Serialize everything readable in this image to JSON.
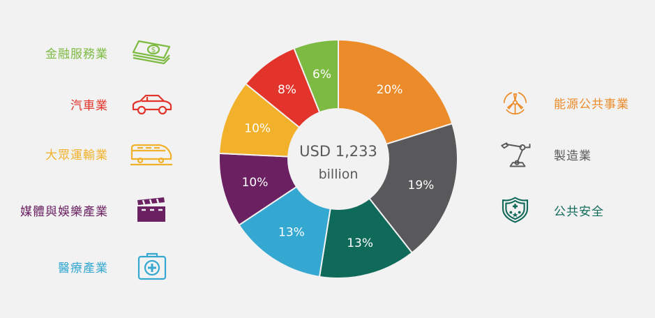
{
  "chart_data": {
    "type": "pie",
    "variant": "donut",
    "center_text": [
      "USD 1,233",
      "billion"
    ],
    "categories": [
      "能源公共事業",
      "製造業",
      "公共安全",
      "醫療產業",
      "媒體與娛樂產業",
      "大眾運輸業",
      "汽車業",
      "金融服務業"
    ],
    "values": [
      20,
      19,
      13,
      13,
      10,
      10,
      8,
      6
    ],
    "labels": [
      "20%",
      "19%",
      "13%",
      "13%",
      "10%",
      "10%",
      "8%",
      "6%"
    ],
    "colors": [
      "#ec8b2a",
      "#59595b",
      "#106a5a",
      "#34a8d1",
      "#6b2062",
      "#f1b12a",
      "#e2342a",
      "#7dba42"
    ],
    "start": "12 o'clock, clockwise"
  },
  "legend": {
    "left": [
      {
        "label": "金融服務業",
        "icon": "money-icon",
        "color": "#7dba42"
      },
      {
        "label": "汽車業",
        "icon": "car-icon",
        "color": "#e2342a"
      },
      {
        "label": "大眾運輸業",
        "icon": "train-icon",
        "color": "#f1b12a"
      },
      {
        "label": "媒體與娛樂產業",
        "icon": "clapperboard-icon",
        "color": "#6b2062"
      },
      {
        "label": "醫療產業",
        "icon": "medical-kit-icon",
        "color": "#34a8d1"
      }
    ],
    "right": [
      {
        "label": "能源公共事業",
        "icon": "wind-turbine-icon",
        "color": "#ec8b2a"
      },
      {
        "label": "製造業",
        "icon": "robot-arm-icon",
        "color": "#59595b"
      },
      {
        "label": "公共安全",
        "icon": "shield-icon",
        "color": "#106a5a"
      }
    ]
  }
}
